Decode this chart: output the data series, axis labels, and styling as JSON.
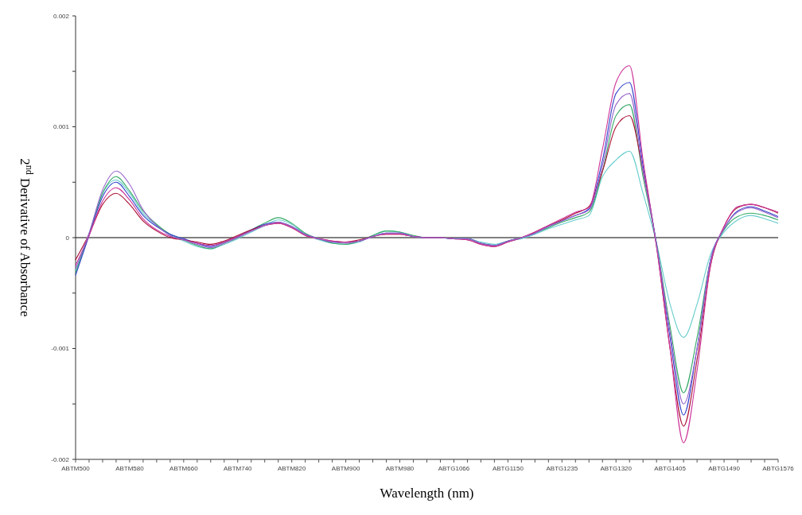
{
  "chart_data": {
    "type": "line",
    "xlabel": "Wavelength (nm)",
    "ylabel": "2$^{nd}$ Derivative of Absorbance",
    "categories": [
      "ABTM500",
      null,
      null,
      null,
      "ABTM580",
      null,
      null,
      null,
      "ABTM660",
      null,
      null,
      null,
      "ABTM740",
      null,
      null,
      null,
      "ABTM820",
      null,
      null,
      null,
      "ABTM900",
      null,
      null,
      null,
      "ABTM980",
      null,
      null,
      null,
      "ABTG1066",
      null,
      null,
      null,
      "ABTG1150",
      null,
      null,
      null,
      "ABTG1235",
      null,
      null,
      null,
      "ABTG1320",
      null,
      null,
      null,
      "ABTG1405",
      null,
      null,
      null,
      "ABTG1490",
      null,
      null,
      null,
      "ABTG1576"
    ],
    "ylim": [
      -0.002,
      0.002
    ],
    "yticks": [
      {
        "value": -0.002,
        "label": "-0.002"
      },
      {
        "value": -0.0015,
        "label": null
      },
      {
        "value": -0.001,
        "label": "-0.001"
      },
      {
        "value": -0.0005,
        "label": null
      },
      {
        "value": 0,
        "label": "0"
      },
      {
        "value": 0.0005,
        "label": null
      },
      {
        "value": 0.001,
        "label": "0.001"
      },
      {
        "value": 0.0015,
        "label": null
      },
      {
        "value": 0.002,
        "label": "0.002"
      }
    ],
    "grid": false,
    "line_style": "solid",
    "ref_lines": [
      {
        "axis": "y",
        "value": 0,
        "color": "#000000"
      }
    ],
    "series": [
      {
        "color": "#66cccc",
        "values": [
          -0.0003,
          4e-05,
          0.0004,
          0.00052,
          0.0004,
          0.00022,
          0.00011,
          2e-05,
          -3e-05,
          -8e-05,
          -0.0001,
          -6e-05,
          -1e-05,
          5e-05,
          0.00011,
          0.00016,
          0.00012,
          3e-05,
          -2e-05,
          -5e-05,
          -6e-05,
          -4e-05,
          2e-05,
          6e-05,
          5e-05,
          1e-05,
          0,
          0,
          -1e-05,
          -1e-05,
          -4e-05,
          -6e-05,
          -3e-05,
          -1e-05,
          3e-05,
          8e-05,
          0.00012,
          0.00016,
          0.0002,
          0.00055,
          0.0007,
          0.00078,
          0.0004,
          -5e-05,
          -0.0006,
          -0.0009,
          -0.0006,
          -0.00015,
          5e-05,
          0.00016,
          0.0002,
          0.00017,
          0.00013
        ]
      },
      {
        "color": "#33aa66",
        "values": [
          -0.00032,
          3e-05,
          0.0004,
          0.00055,
          0.00042,
          0.00024,
          0.00012,
          3e-05,
          -2e-05,
          -7e-05,
          -0.0001,
          -5e-05,
          0,
          7e-05,
          0.00013,
          0.00018,
          0.00013,
          4e-05,
          -1e-05,
          -5e-05,
          -6e-05,
          -3e-05,
          2e-05,
          6e-05,
          5e-05,
          2e-05,
          0,
          0,
          -1e-05,
          -1e-05,
          -5e-05,
          -7e-05,
          -3e-05,
          0,
          4e-05,
          9e-05,
          0.00014,
          0.00018,
          0.00023,
          0.0006,
          0.0011,
          0.0012,
          0.00055,
          -5e-05,
          -0.0008,
          -0.0014,
          -0.0009,
          -0.0002,
          7e-05,
          0.00019,
          0.00022,
          0.0002,
          0.00016
        ]
      },
      {
        "color": "#3344cc",
        "values": [
          -0.00034,
          2e-05,
          0.00037,
          0.0005,
          0.00037,
          0.0002,
          0.0001,
          3e-05,
          -1e-05,
          -5e-05,
          -8e-05,
          -4e-05,
          1e-05,
          7e-05,
          0.00012,
          0.00014,
          0.0001,
          3e-05,
          -1e-05,
          -4e-05,
          -4e-05,
          -3e-05,
          1e-05,
          4e-05,
          4e-05,
          1e-05,
          0,
          0,
          -1e-05,
          -1e-05,
          -5e-05,
          -7e-05,
          -3e-05,
          0,
          4e-05,
          0.0001,
          0.00015,
          0.0002,
          0.00026,
          0.0007,
          0.0013,
          0.0014,
          0.00065,
          -6e-05,
          -0.0009,
          -0.0016,
          -0.001,
          -0.0002,
          8e-05,
          0.00024,
          0.00028,
          0.00024,
          0.00019
        ]
      },
      {
        "color": "#aa1133",
        "values": [
          -0.0002,
          3e-05,
          0.0003,
          0.0004,
          0.0003,
          0.00015,
          6e-05,
          0,
          -2e-05,
          -4e-05,
          -6e-05,
          -3e-05,
          2e-05,
          7e-05,
          0.00011,
          0.00013,
          9e-05,
          2e-05,
          -1e-05,
          -3e-05,
          -4e-05,
          -2e-05,
          1e-05,
          3e-05,
          3e-05,
          1e-05,
          0,
          0,
          -1e-05,
          -2e-05,
          -6e-05,
          -8e-05,
          -4e-05,
          0,
          5e-05,
          0.00011,
          0.00016,
          0.00022,
          0.00028,
          0.0006,
          0.001,
          0.0011,
          0.0006,
          -8e-05,
          -0.001,
          -0.0017,
          -0.0011,
          -0.00025,
          0.0001,
          0.00027,
          0.0003,
          0.00027,
          0.00022
        ]
      },
      {
        "color": "#cc3399",
        "values": [
          -0.00025,
          2e-05,
          0.00033,
          0.00045,
          0.00034,
          0.00017,
          7e-05,
          1e-05,
          -2e-05,
          -5e-05,
          -7e-05,
          -4e-05,
          1e-05,
          6e-05,
          0.00011,
          0.00013,
          9e-05,
          2e-05,
          -1e-05,
          -3e-05,
          -4e-05,
          -3e-05,
          1e-05,
          3e-05,
          3e-05,
          1e-05,
          0,
          0,
          -1e-05,
          -2e-05,
          -6e-05,
          -8e-05,
          -4e-05,
          0,
          5e-05,
          0.00011,
          0.00017,
          0.00023,
          0.00027,
          0.0008,
          0.0014,
          0.00155,
          0.0007,
          -8e-05,
          -0.001,
          -0.00185,
          -0.0012,
          -0.00025,
          0.0001,
          0.00028,
          0.0003,
          0.00027,
          0.00023
        ]
      },
      {
        "color": "#9966cc",
        "values": [
          -0.00028,
          4e-05,
          0.00043,
          0.0006,
          0.00048,
          0.00025,
          0.00011,
          2e-05,
          -2e-05,
          -6e-05,
          -9e-05,
          -5e-05,
          0,
          6e-05,
          0.00011,
          0.00014,
          0.0001,
          3e-05,
          -1e-05,
          -4e-05,
          -5e-05,
          -3e-05,
          1e-05,
          4e-05,
          4e-05,
          1e-05,
          0,
          0,
          -1e-05,
          -1e-05,
          -5e-05,
          -7e-05,
          -3e-05,
          0,
          4e-05,
          0.0001,
          0.00015,
          0.0002,
          0.00025,
          0.00065,
          0.0012,
          0.0013,
          0.0006,
          -6e-05,
          -0.00085,
          -0.0015,
          -0.001,
          -0.0002,
          8e-05,
          0.00023,
          0.00027,
          0.00023,
          0.00018
        ]
      }
    ]
  }
}
